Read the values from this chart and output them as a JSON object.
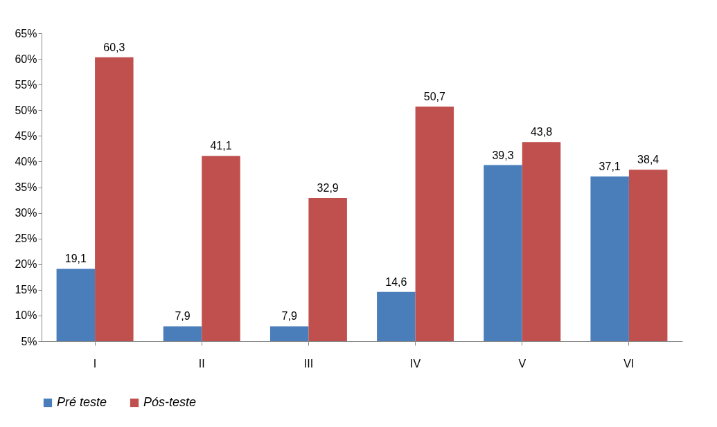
{
  "chart_data": {
    "type": "bar",
    "categories": [
      "I",
      "II",
      "III",
      "IV",
      "V",
      "VI"
    ],
    "series": [
      {
        "name": "Pré teste",
        "color": "#4a7ebb",
        "values": [
          19.1,
          7.9,
          7.9,
          14.6,
          39.3,
          37.1
        ],
        "value_labels": [
          "19,1",
          "7,9",
          "7,9",
          "14,6",
          "39,3",
          "37,1"
        ]
      },
      {
        "name": "Pós-teste",
        "color": "#c0504d",
        "values": [
          60.3,
          41.1,
          32.9,
          50.7,
          43.8,
          38.4
        ],
        "value_labels": [
          "60,3",
          "41,1",
          "32,9",
          "50,7",
          "43,8",
          "38,4"
        ]
      }
    ],
    "ylim": [
      5,
      65
    ],
    "yticks": [
      {
        "value": 5,
        "label": "5%"
      },
      {
        "value": 10,
        "label": "10%"
      },
      {
        "value": 15,
        "label": "15%"
      },
      {
        "value": 20,
        "label": "20%"
      },
      {
        "value": 25,
        "label": "25%"
      },
      {
        "value": 30,
        "label": "30%"
      },
      {
        "value": 35,
        "label": "35%"
      },
      {
        "value": 40,
        "label": "40%"
      },
      {
        "value": 45,
        "label": "45%"
      },
      {
        "value": 50,
        "label": "50%"
      },
      {
        "value": 55,
        "label": "55%"
      },
      {
        "value": 60,
        "label": "60%"
      },
      {
        "value": 65,
        "label": "65%"
      }
    ],
    "grid": false,
    "legend": "bottom"
  }
}
